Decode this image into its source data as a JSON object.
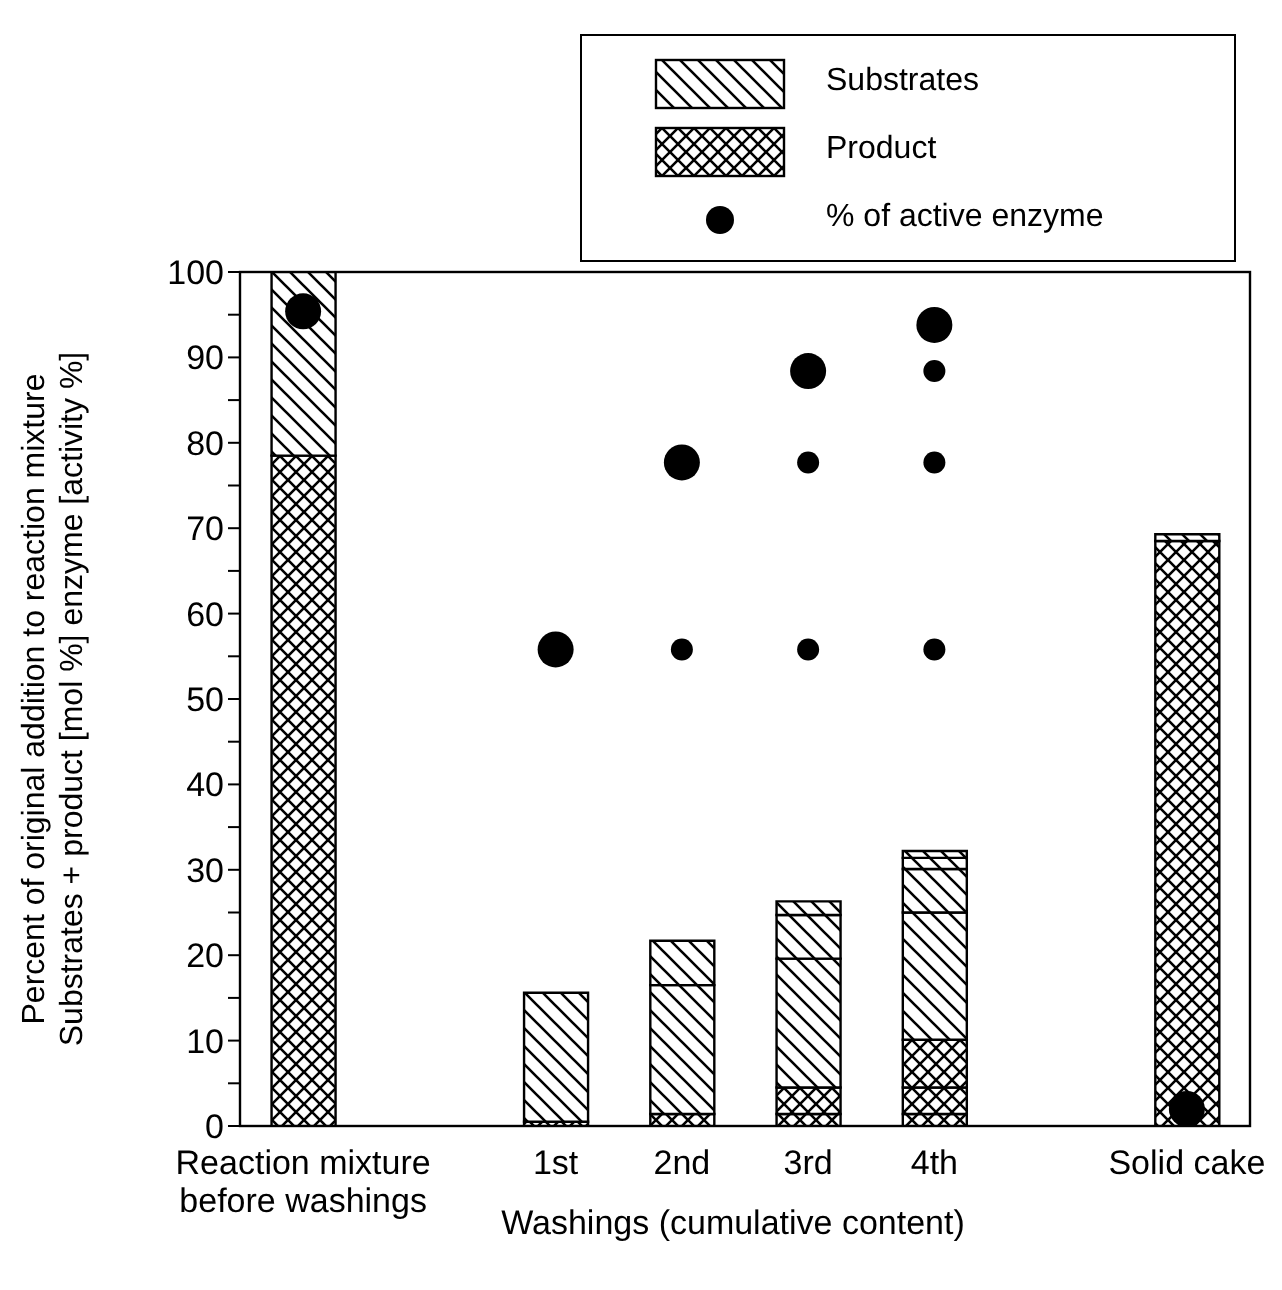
{
  "chart_data": {
    "type": "bar",
    "stacked": true,
    "ylabel": "Percent of original addition to reaction mixture\nSubstrates + product [mol %] enzyme [activity %]",
    "xlabel": "Washings (cumulative content)",
    "categories": [
      "Reaction mixture before washings",
      null,
      "1st",
      "2nd",
      "3rd",
      "4th",
      null,
      "Solid cake"
    ],
    "ylim": [
      0,
      100
    ],
    "yticks": [
      0,
      {
        "value": 5,
        "label": null
      },
      10,
      {
        "value": 15,
        "label": null
      },
      20,
      {
        "value": 25,
        "label": null
      },
      30,
      {
        "value": 35,
        "label": null
      },
      40,
      {
        "value": 45,
        "label": null
      },
      50,
      {
        "value": 55,
        "label": null
      },
      60,
      {
        "value": 65,
        "label": null
      },
      70,
      {
        "value": 75,
        "label": null
      },
      80,
      {
        "value": 85,
        "label": null
      },
      90,
      {
        "value": 95,
        "label": null
      },
      100
    ],
    "legend": "top right",
    "marker": "circle",
    "series": [
      {
        "name": "Product",
        "color": "#000000",
        "values": [
          78.5,
          null,
          0.5,
          1.4,
          1.4,
          1.4,
          null,
          68.5
        ]
      },
      {
        "color": "#000000",
        "values": [
          null,
          null,
          null,
          null,
          3.1,
          3.1,
          null,
          null
        ]
      },
      {
        "color": "#000000",
        "values": [
          null,
          null,
          null,
          null,
          null,
          5.6,
          null,
          null
        ]
      },
      {
        "name": "Substrates",
        "color": "#000000",
        "values": [
          21.5,
          null,
          15.1,
          15.1,
          15.1,
          14.9,
          null,
          0.8
        ]
      },
      {
        "color": "#000000",
        "values": [
          null,
          null,
          null,
          5.2,
          5.1,
          5.1,
          null,
          null
        ]
      },
      {
        "color": "#000000",
        "values": [
          null,
          null,
          null,
          null,
          1.6,
          1.3,
          null,
          null
        ]
      },
      {
        "color": "#000000",
        "values": [
          null,
          null,
          null,
          null,
          null,
          0.8,
          null,
          null
        ]
      },
      {
        "name": "% of active enzyme",
        "type": "scatter",
        "color": "#000000",
        "x": [
          "Reaction mixture before washings",
          "1st",
          "2nd",
          "3rd",
          "4th",
          "Solid cake"
        ],
        "values": [
          95.4,
          55.8,
          77.7,
          88.4,
          93.8,
          2
        ]
      },
      {
        "type": "scatter",
        "color": "#000000",
        "x": [
          "2nd",
          "3rd",
          "3rd",
          "4th",
          "4th",
          "4th"
        ],
        "values": [
          55.8,
          55.8,
          77.7,
          55.8,
          77.7,
          88.4
        ]
      }
    ]
  }
}
